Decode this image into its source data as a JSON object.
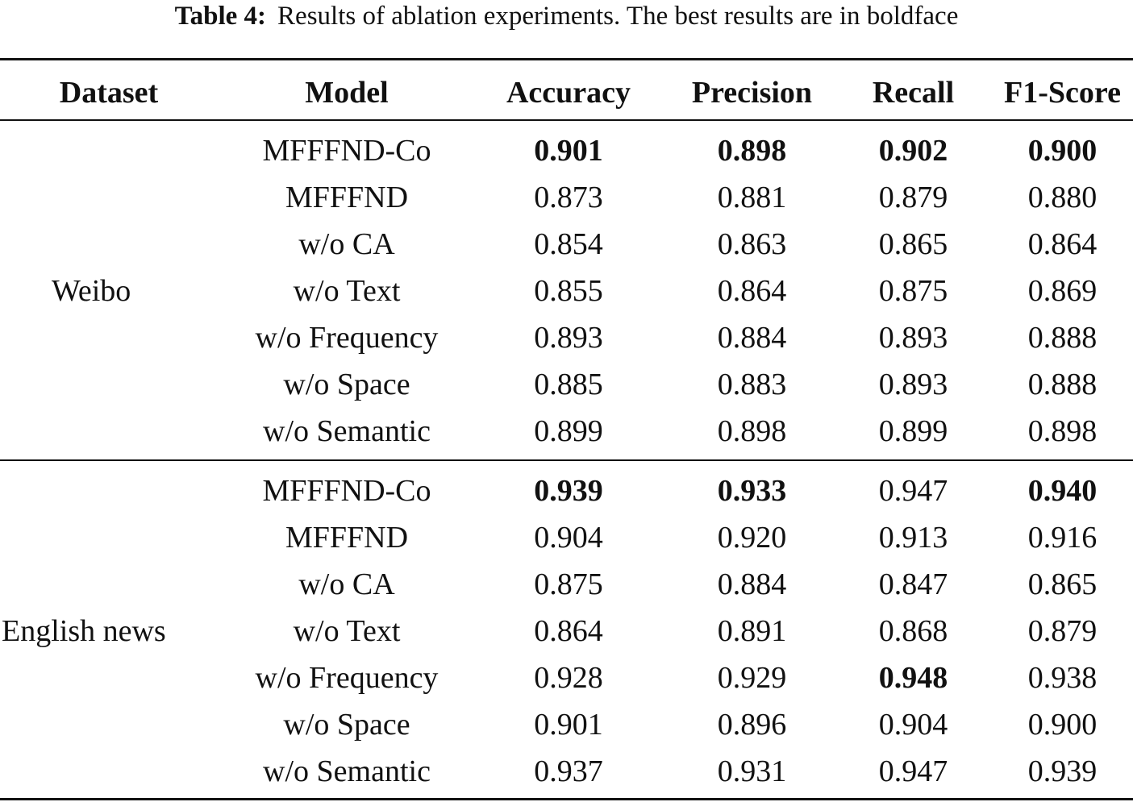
{
  "caption": {
    "label": "Table 4:",
    "text": "Results of ablation experiments. The best results are in boldface"
  },
  "table": {
    "headers": {
      "dataset": "Dataset",
      "model": "Model",
      "accuracy": "Accuracy",
      "precision": "Precision",
      "recall": "Recall",
      "f1": "F1-Score"
    },
    "groups": [
      {
        "dataset": "Weibo",
        "rows": [
          {
            "model": "MFFFND-Co",
            "accuracy": "0.901",
            "precision": "0.898",
            "recall": "0.902",
            "f1": "0.900",
            "bold": [
              "accuracy",
              "precision",
              "recall",
              "f1"
            ]
          },
          {
            "model": "MFFFND",
            "accuracy": "0.873",
            "precision": "0.881",
            "recall": "0.879",
            "f1": "0.880",
            "bold": []
          },
          {
            "model": "w/o CA",
            "accuracy": "0.854",
            "precision": "0.863",
            "recall": "0.865",
            "f1": "0.864",
            "bold": []
          },
          {
            "model": "w/o Text",
            "accuracy": "0.855",
            "precision": "0.864",
            "recall": "0.875",
            "f1": "0.869",
            "bold": []
          },
          {
            "model": "w/o Frequency",
            "accuracy": "0.893",
            "precision": "0.884",
            "recall": "0.893",
            "f1": "0.888",
            "bold": []
          },
          {
            "model": "w/o Space",
            "accuracy": "0.885",
            "precision": "0.883",
            "recall": "0.893",
            "f1": "0.888",
            "bold": []
          },
          {
            "model": "w/o Semantic",
            "accuracy": "0.899",
            "precision": "0.898",
            "recall": "0.899",
            "f1": "0.898",
            "bold": []
          }
        ]
      },
      {
        "dataset": "English news",
        "rows": [
          {
            "model": "MFFFND-Co",
            "accuracy": "0.939",
            "precision": "0.933",
            "recall": "0.947",
            "f1": "0.940",
            "bold": [
              "accuracy",
              "precision",
              "f1"
            ]
          },
          {
            "model": "MFFFND",
            "accuracy": "0.904",
            "precision": "0.920",
            "recall": "0.913",
            "f1": "0.916",
            "bold": []
          },
          {
            "model": "w/o CA",
            "accuracy": "0.875",
            "precision": "0.884",
            "recall": "0.847",
            "f1": "0.865",
            "bold": []
          },
          {
            "model": "w/o Text",
            "accuracy": "0.864",
            "precision": "0.891",
            "recall": "0.868",
            "f1": "0.879",
            "bold": []
          },
          {
            "model": "w/o Frequency",
            "accuracy": "0.928",
            "precision": "0.929",
            "recall": "0.948",
            "f1": "0.938",
            "bold": [
              "recall"
            ]
          },
          {
            "model": "w/o Space",
            "accuracy": "0.901",
            "precision": "0.896",
            "recall": "0.904",
            "f1": "0.900",
            "bold": []
          },
          {
            "model": "w/o Semantic",
            "accuracy": "0.937",
            "precision": "0.931",
            "recall": "0.947",
            "f1": "0.939",
            "bold": []
          }
        ]
      }
    ]
  }
}
